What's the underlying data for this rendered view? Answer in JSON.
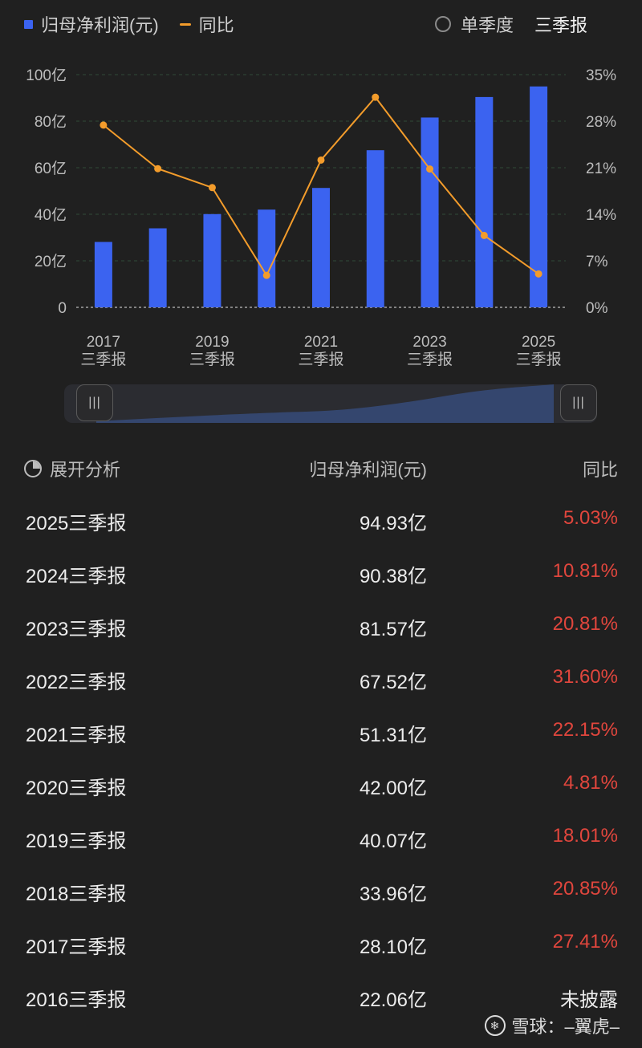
{
  "legend": {
    "bar_label": "归母净利润(元)",
    "line_label": "同比"
  },
  "toggle": {
    "option_single": "单季度",
    "option_selected": "三季报"
  },
  "colors": {
    "bar": "#3b63f0",
    "line": "#f39c2b",
    "negative_text": "#e0463d",
    "background": "#202020"
  },
  "chart_data": {
    "type": "bar",
    "categories": [
      "2017",
      "2018",
      "2019",
      "2020",
      "2021",
      "2022",
      "2023",
      "2024",
      "2025"
    ],
    "tick_labels": [
      {
        "year": "2017",
        "period": "三季报"
      },
      {
        "year": "2019",
        "period": "三季报"
      },
      {
        "year": "2021",
        "period": "三季报"
      },
      {
        "year": "2023",
        "period": "三季报"
      },
      {
        "year": "2025",
        "period": "三季报"
      }
    ],
    "series": [
      {
        "name": "归母净利润(元)",
        "type": "bar",
        "unit": "亿",
        "values": [
          28.1,
          33.96,
          40.07,
          42.0,
          51.31,
          67.52,
          81.57,
          90.38,
          94.93
        ]
      },
      {
        "name": "同比",
        "type": "line",
        "unit": "%",
        "values": [
          27.41,
          20.85,
          18.01,
          4.81,
          22.15,
          31.6,
          20.81,
          10.81,
          5.03
        ]
      }
    ],
    "y_left": {
      "ylim": [
        0,
        100
      ],
      "ticks": [
        "0",
        "20亿",
        "40亿",
        "60亿",
        "80亿",
        "100亿"
      ]
    },
    "y_right": {
      "ylim": [
        0,
        35
      ],
      "ticks": [
        "0%",
        "7%",
        "14%",
        "21%",
        "28%",
        "35%"
      ]
    },
    "grid": true
  },
  "slider": {
    "handle_glyph": "|||"
  },
  "table": {
    "headers": {
      "col1": "展开分析",
      "col2": "归母净利润(元)",
      "col3": "同比"
    },
    "rows": [
      {
        "period": "2025三季报",
        "value": "94.93亿",
        "yoy": "5.03%"
      },
      {
        "period": "2024三季报",
        "value": "90.38亿",
        "yoy": "10.81%"
      },
      {
        "period": "2023三季报",
        "value": "81.57亿",
        "yoy": "20.81%"
      },
      {
        "period": "2022三季报",
        "value": "67.52亿",
        "yoy": "31.60%"
      },
      {
        "period": "2021三季报",
        "value": "51.31亿",
        "yoy": "22.15%"
      },
      {
        "period": "2020三季报",
        "value": "42.00亿",
        "yoy": "4.81%"
      },
      {
        "period": "2019三季报",
        "value": "40.07亿",
        "yoy": "18.01%"
      },
      {
        "period": "2018三季报",
        "value": "33.96亿",
        "yoy": "20.85%"
      },
      {
        "period": "2017三季报",
        "value": "28.10亿",
        "yoy": "27.41%"
      },
      {
        "period": "2016三季报",
        "value": "22.06亿",
        "yoy": "未披露"
      }
    ]
  },
  "watermark": {
    "text": "雪球：–翼虎–"
  }
}
